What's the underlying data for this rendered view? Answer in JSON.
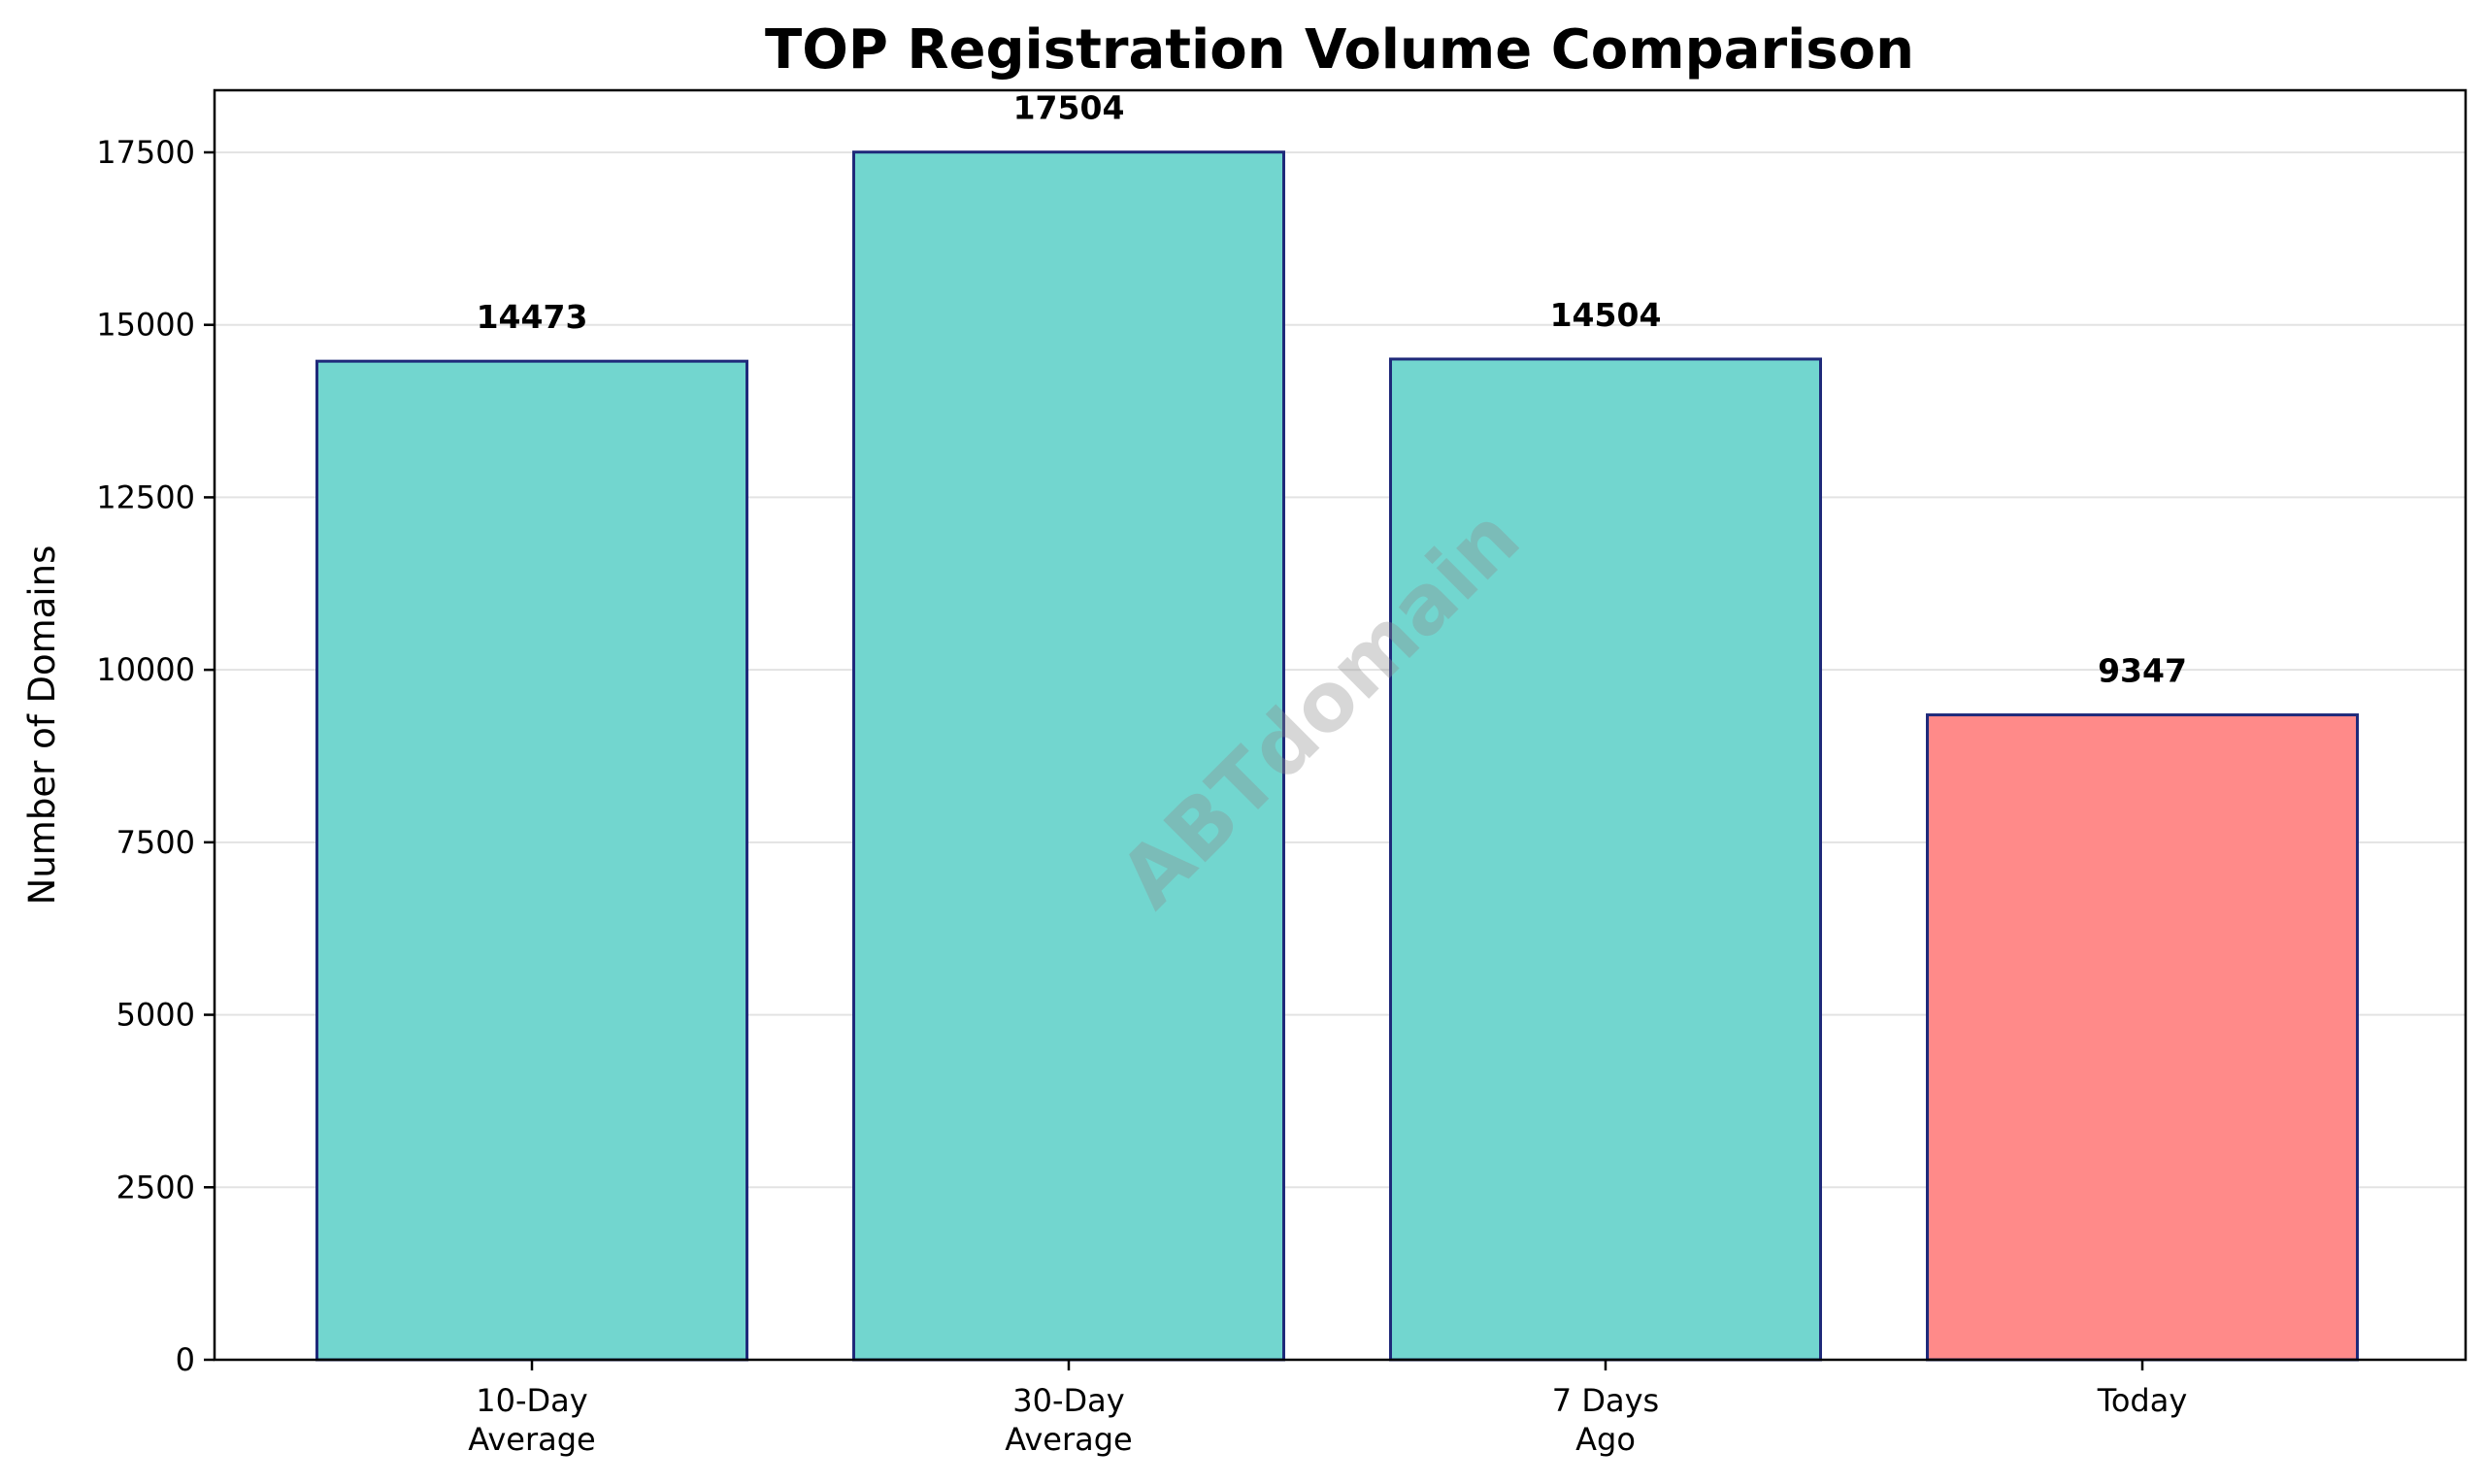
{
  "chart_data": {
    "type": "bar",
    "title": "TOP Registration Volume Comparison",
    "xlabel": "",
    "ylabel": "Number of Domains",
    "categories": [
      [
        "10-Day",
        "Average"
      ],
      [
        "30-Day",
        "Average"
      ],
      [
        "7 Days",
        "Ago"
      ],
      [
        "Today"
      ]
    ],
    "values": [
      14473,
      17504,
      14504,
      9347
    ],
    "data_labels": [
      "14473",
      "17504",
      "14504",
      "9347"
    ],
    "bar_colors": [
      "#72d6cf",
      "#72d6cf",
      "#72d6cf",
      "#ff8a89"
    ],
    "bar_edge_color": "#1f2a7a",
    "ylim": [
      0,
      18400
    ],
    "yticks": [
      0,
      2500,
      5000,
      7500,
      10000,
      12500,
      15000,
      17500
    ],
    "ytick_labels": [
      "0",
      "2500",
      "5000",
      "7500",
      "10000",
      "12500",
      "15000",
      "17500"
    ],
    "grid": "y",
    "grid_color": "#e3e3e3",
    "legend": "none"
  },
  "watermark": {
    "text": "ABTdomain"
  }
}
